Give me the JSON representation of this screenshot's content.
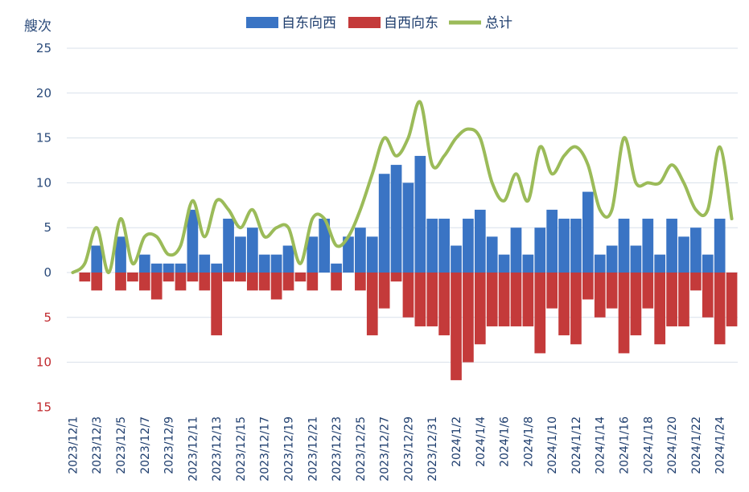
{
  "chart_data": {
    "type": "bar",
    "ylabel": "艘次",
    "yticks_pos": [
      "25",
      "20",
      "15",
      "10",
      "5",
      "0"
    ],
    "yticks_neg": [
      "5",
      "10",
      "15"
    ],
    "ylim": [
      -15,
      25
    ],
    "legend_position": "top",
    "grid": true,
    "colors": {
      "ew": "#3a74c4",
      "we": "#c43a3a",
      "total": "#9bbb59",
      "grid": "#d8e0ea"
    },
    "categories": [
      "2023/12/1",
      "2023/12/2",
      "2023/12/3",
      "2023/12/4",
      "2023/12/5",
      "2023/12/6",
      "2023/12/7",
      "2023/12/8",
      "2023/12/9",
      "2023/12/10",
      "2023/12/11",
      "2023/12/12",
      "2023/12/13",
      "2023/12/14",
      "2023/12/15",
      "2023/12/16",
      "2023/12/17",
      "2023/12/18",
      "2023/12/19",
      "2023/12/20",
      "2023/12/21",
      "2023/12/22",
      "2023/12/23",
      "2023/12/24",
      "2023/12/25",
      "2023/12/26",
      "2023/12/27",
      "2023/12/28",
      "2023/12/29",
      "2023/12/30",
      "2023/12/31",
      "2024/1/1",
      "2024/1/2",
      "2024/1/3",
      "2024/1/4",
      "2024/1/5",
      "2024/1/6",
      "2024/1/7",
      "2024/1/8",
      "2024/1/9",
      "2024/1/10",
      "2024/1/11",
      "2024/1/12",
      "2024/1/13",
      "2024/1/14",
      "2024/1/15",
      "2024/1/16",
      "2024/1/17",
      "2024/1/18",
      "2024/1/19",
      "2024/1/20",
      "2024/1/21",
      "2024/1/22",
      "2024/1/23",
      "2024/1/24",
      "2024/1/25"
    ],
    "xtick_labels": [
      "2023/12/1",
      "2023/12/3",
      "2023/12/5",
      "2023/12/7",
      "2023/12/9",
      "2023/12/11",
      "2023/12/13",
      "2023/12/15",
      "2023/12/17",
      "2023/12/19",
      "2023/12/21",
      "2023/12/23",
      "2023/12/25",
      "2023/12/27",
      "2023/12/29",
      "2023/12/31",
      "2024/1/2",
      "2024/1/4",
      "2024/1/6",
      "2024/1/8",
      "2024/1/10",
      "2024/1/12",
      "2024/1/14",
      "2024/1/16",
      "2024/1/18",
      "2024/1/20",
      "2024/1/22",
      "2024/1/24"
    ],
    "series": [
      {
        "name": "自东向西",
        "values": [
          0,
          0,
          3,
          0,
          4,
          0,
          2,
          1,
          1,
          1,
          7,
          2,
          1,
          6,
          4,
          5,
          2,
          2,
          3,
          0,
          4,
          6,
          1,
          4,
          5,
          4,
          11,
          12,
          10,
          13,
          6,
          6,
          3,
          6,
          7,
          4,
          2,
          5,
          2,
          5,
          7,
          6,
          6,
          9,
          2,
          3,
          6,
          3,
          6,
          2,
          6,
          4,
          5,
          2,
          6,
          0
        ]
      },
      {
        "name": "自西向东",
        "values": [
          0,
          1,
          2,
          0,
          2,
          1,
          2,
          3,
          1,
          2,
          1,
          2,
          7,
          1,
          1,
          2,
          2,
          3,
          2,
          1,
          2,
          0,
          2,
          0,
          2,
          7,
          4,
          1,
          5,
          6,
          6,
          7,
          12,
          10,
          8,
          6,
          6,
          6,
          6,
          9,
          4,
          7,
          8,
          3,
          5,
          4,
          9,
          7,
          4,
          8,
          6,
          6,
          2,
          5,
          8,
          6
        ]
      },
      {
        "name": "总计",
        "values": [
          0,
          1,
          5,
          0,
          6,
          1,
          4,
          4,
          2,
          3,
          8,
          4,
          8,
          7,
          5,
          7,
          4,
          5,
          5,
          1,
          6,
          6,
          3,
          4,
          7,
          11,
          15,
          13,
          15,
          19,
          12,
          13,
          15,
          16,
          15,
          10,
          8,
          11,
          8,
          14,
          11,
          13,
          14,
          12,
          7,
          7,
          15,
          10,
          10,
          10,
          12,
          10,
          7,
          7,
          14,
          6
        ]
      }
    ]
  }
}
